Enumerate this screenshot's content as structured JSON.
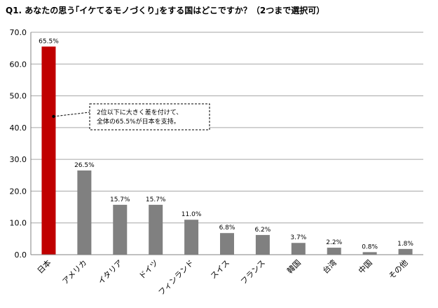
{
  "chart_data": {
    "type": "bar",
    "title": "Q1. あなたの思う｢イケてるモノづくり｣をする国はどこですか？（2つまで選択可）",
    "categories": [
      "日本",
      "アメリカ",
      "イタリア",
      "ドイツ",
      "フィンランド",
      "スイス",
      "フランス",
      "韓国",
      "台湾",
      "中国",
      "その他"
    ],
    "values": [
      65.5,
      26.5,
      15.7,
      15.7,
      11.0,
      6.8,
      6.2,
      3.7,
      2.2,
      0.8,
      1.8
    ],
    "data_labels": [
      "65.5%",
      "26.5%",
      "15.7%",
      "15.7%",
      "11.0%",
      "6.8%",
      "6.2%",
      "3.7%",
      "2.2%",
      "0.8%",
      "1.8%"
    ],
    "y_ticks": [
      "0.0",
      "10.0",
      "20.0",
      "30.0",
      "40.0",
      "50.0",
      "60.0",
      "70.0"
    ],
    "ylim": [
      0,
      70
    ],
    "xlabel": "",
    "ylabel": "",
    "grid": true,
    "legend": "none",
    "colors": {
      "highlight": "#c00000",
      "default": "#808080",
      "grid": "#a6a6a6",
      "axis": "#808080"
    },
    "annotation": {
      "lines": [
        "2位以下に大きく差を付けて、",
        "全体の65.5%が日本を支持。"
      ],
      "target_category": "日本"
    }
  }
}
